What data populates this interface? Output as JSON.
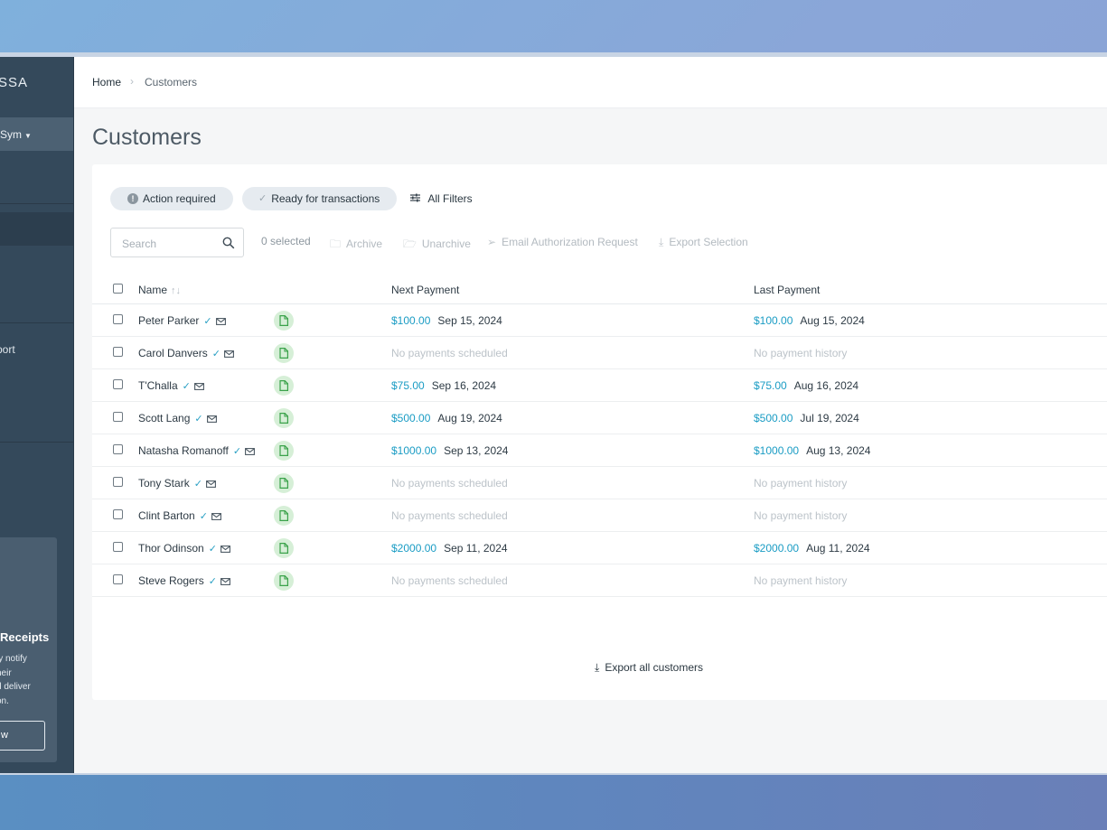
{
  "sidebar": {
    "logo": "SSA",
    "org": "Sym",
    "nav_item": "port",
    "promo": {
      "title": "Receipts",
      "lines": [
        "ly notify",
        "heir",
        "d deliver",
        "on."
      ],
      "button": "w"
    }
  },
  "breadcrumb": {
    "home": "Home",
    "separator": "›",
    "current": "Customers"
  },
  "page": {
    "title": "Customers"
  },
  "filters": {
    "action_required": "Action required",
    "ready": "Ready for transactions",
    "all_filters": "All Filters"
  },
  "toolbar": {
    "search_placeholder": "Search",
    "selected": "0 selected",
    "archive": "Archive",
    "unarchive": "Unarchive",
    "email_auth": "Email Authorization Request",
    "export_selection": "Export Selection"
  },
  "table": {
    "headers": {
      "name": "Name",
      "next": "Next Payment",
      "last": "Last Payment"
    },
    "sort_icon": "↑↓",
    "verified_icon": "✓",
    "rows": [
      {
        "name": "Peter Parker",
        "next_amount": "$100.00",
        "next_date": "Sep 15, 2024",
        "last_amount": "$100.00",
        "last_date": "Aug 15, 2024"
      },
      {
        "name": "Carol Danvers",
        "next_empty": "No payments scheduled",
        "last_empty": "No payment history"
      },
      {
        "name": "T'Challa",
        "next_amount": "$75.00",
        "next_date": "Sep 16, 2024",
        "last_amount": "$75.00",
        "last_date": "Aug 16, 2024"
      },
      {
        "name": "Scott Lang",
        "next_amount": "$500.00",
        "next_date": "Aug 19, 2024",
        "last_amount": "$500.00",
        "last_date": "Jul 19, 2024"
      },
      {
        "name": "Natasha Romanoff",
        "next_amount": "$1000.00",
        "next_date": "Sep 13, 2024",
        "last_amount": "$1000.00",
        "last_date": "Aug 13, 2024"
      },
      {
        "name": "Tony Stark",
        "next_empty": "No payments scheduled",
        "last_empty": "No payment history"
      },
      {
        "name": "Clint Barton",
        "next_empty": "No payments scheduled",
        "last_empty": "No payment history"
      },
      {
        "name": "Thor Odinson",
        "next_amount": "$2000.00",
        "next_date": "Sep 11, 2024",
        "last_amount": "$2000.00",
        "last_date": "Aug 11, 2024"
      },
      {
        "name": "Steve Rogers",
        "next_empty": "No payments scheduled",
        "last_empty": "No payment history"
      }
    ]
  },
  "footer": {
    "export_all": "Export all customers"
  },
  "colors": {
    "accent": "#1a9cc4",
    "sidebar": "#34495b",
    "doc_badge": "#d6efd7"
  }
}
